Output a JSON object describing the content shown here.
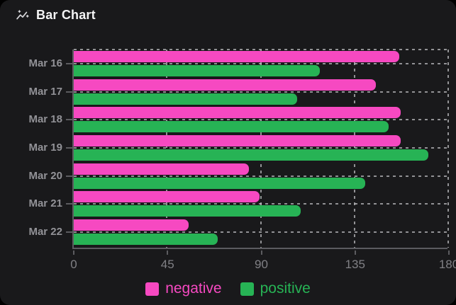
{
  "header": {
    "title": "Bar Chart",
    "icon": "trend-sparkline-icon"
  },
  "colors": {
    "card_background": "#19191b",
    "negative": "#f649c1",
    "positive": "#27b355",
    "axis": "#5c5c60",
    "grid": "#dcdce0",
    "category_label": "#929297",
    "tick_label": "#808085",
    "title": "#f4f4f5"
  },
  "chart_data": {
    "type": "bar",
    "orientation": "horizontal",
    "title": "Bar Chart",
    "categories": [
      "Mar 16",
      "Mar 17",
      "Mar 18",
      "Mar 19",
      "Mar 20",
      "Mar 21",
      "Mar 22"
    ],
    "series": [
      {
        "name": "negative",
        "color": "#f649c1",
        "values": [
          156,
          145,
          157,
          157,
          84,
          89,
          55
        ]
      },
      {
        "name": "positive",
        "color": "#27b355",
        "values": [
          118,
          107,
          151,
          170,
          140,
          109,
          69
        ]
      }
    ],
    "xlabel": "",
    "ylabel": "",
    "xlim": [
      0,
      180
    ],
    "xticks": [
      0,
      45,
      90,
      135,
      180
    ],
    "grid": true,
    "grid_style": "dashed",
    "legend_position": "bottom"
  },
  "legend": {
    "items": [
      {
        "label": "negative",
        "color": "#f649c1"
      },
      {
        "label": "positive",
        "color": "#27b355"
      }
    ]
  }
}
